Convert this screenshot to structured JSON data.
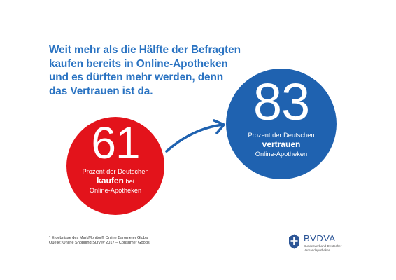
{
  "headline": {
    "lines": [
      "Weit mehr als die Hälfte der Befragten",
      "kaufen bereits in Online-Apotheken",
      "und es dürften mehr werden, denn",
      "das Vertrauen ist da."
    ]
  },
  "stat_buy": {
    "number": "61",
    "line1": "Prozent der Deutschen",
    "emphasis": "kaufen",
    "after_emphasis": " bei",
    "line3": "Online-Apotheken",
    "color": "#e3131b"
  },
  "stat_trust": {
    "number": "83",
    "line1": "Prozent der Deutschen",
    "emphasis": "vertrauen",
    "line3": "Online-Apotheken",
    "color": "#1f62b0"
  },
  "arrow": {
    "icon": "curved-arrow-right-icon",
    "color": "#1f62b0"
  },
  "footnote": {
    "line1": "* Ergebnisse des MarkMonitor® Online Barometer Global",
    "line2": "Quelle: Online Shopping Survey 2017 – Consumer Goods"
  },
  "logo": {
    "name": "BVDVA",
    "subtitle_line1": "Bundesverband Deutscher",
    "subtitle_line2": "Versandapotheken",
    "icon": "shield-logo-icon",
    "color": "#2c5596"
  },
  "colors": {
    "headline": "#2a73c2",
    "background": "#ffffff"
  }
}
